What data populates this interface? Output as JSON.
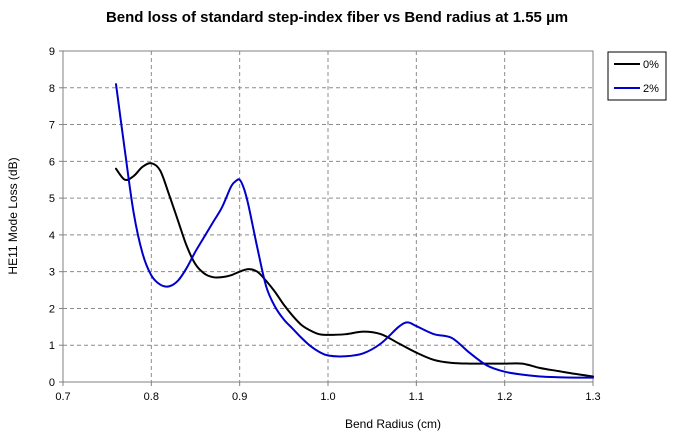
{
  "chart_data": {
    "type": "line",
    "title": "Bend loss of standard step-index fiber vs Bend radius  at 1.55 µm",
    "xlabel": "Bend Radius (cm)",
    "ylabel": "HE11 Mode  Loss (dB)",
    "xlim": [
      0.7,
      1.3
    ],
    "ylim": [
      0,
      9
    ],
    "x_ticks": [
      "0.7",
      "0.8",
      "0.9",
      "1.0",
      "1.1",
      "1.2",
      "1.3"
    ],
    "y_ticks": [
      "0",
      "1",
      "2",
      "3",
      "4",
      "5",
      "6",
      "7",
      "8",
      "9"
    ],
    "grid": true,
    "legend_position": "right",
    "series": [
      {
        "name": "0%",
        "color": "#000000",
        "x": [
          0.76,
          0.77,
          0.78,
          0.79,
          0.8,
          0.81,
          0.82,
          0.83,
          0.84,
          0.85,
          0.86,
          0.87,
          0.88,
          0.89,
          0.9,
          0.91,
          0.92,
          0.93,
          0.94,
          0.95,
          0.96,
          0.97,
          0.98,
          0.99,
          1.0,
          1.02,
          1.04,
          1.06,
          1.08,
          1.1,
          1.12,
          1.14,
          1.16,
          1.18,
          1.2,
          1.22,
          1.24,
          1.26,
          1.28,
          1.3
        ],
        "y": [
          5.8,
          5.5,
          5.6,
          5.85,
          5.95,
          5.75,
          5.1,
          4.4,
          3.7,
          3.2,
          2.95,
          2.85,
          2.85,
          2.9,
          3.0,
          3.07,
          3.0,
          2.75,
          2.45,
          2.1,
          1.8,
          1.55,
          1.4,
          1.3,
          1.28,
          1.3,
          1.37,
          1.3,
          1.05,
          0.8,
          0.6,
          0.52,
          0.5,
          0.5,
          0.5,
          0.5,
          0.38,
          0.3,
          0.22,
          0.15
        ]
      },
      {
        "name": "2%",
        "color": "#0000cc",
        "x": [
          0.76,
          0.77,
          0.78,
          0.79,
          0.8,
          0.81,
          0.82,
          0.83,
          0.84,
          0.85,
          0.86,
          0.87,
          0.88,
          0.89,
          0.895,
          0.9,
          0.905,
          0.91,
          0.92,
          0.93,
          0.94,
          0.95,
          0.96,
          0.97,
          0.98,
          0.99,
          1.0,
          1.02,
          1.04,
          1.06,
          1.08,
          1.09,
          1.1,
          1.12,
          1.14,
          1.16,
          1.18,
          1.2,
          1.22,
          1.24,
          1.26,
          1.28,
          1.3
        ],
        "y": [
          8.1,
          6.3,
          4.6,
          3.5,
          2.9,
          2.65,
          2.6,
          2.75,
          3.1,
          3.55,
          3.95,
          4.35,
          4.75,
          5.3,
          5.45,
          5.5,
          5.25,
          4.8,
          3.65,
          2.6,
          2.05,
          1.7,
          1.45,
          1.2,
          0.98,
          0.82,
          0.72,
          0.7,
          0.78,
          1.05,
          1.5,
          1.62,
          1.52,
          1.3,
          1.2,
          0.8,
          0.45,
          0.28,
          0.2,
          0.15,
          0.13,
          0.12,
          0.12
        ]
      }
    ]
  }
}
